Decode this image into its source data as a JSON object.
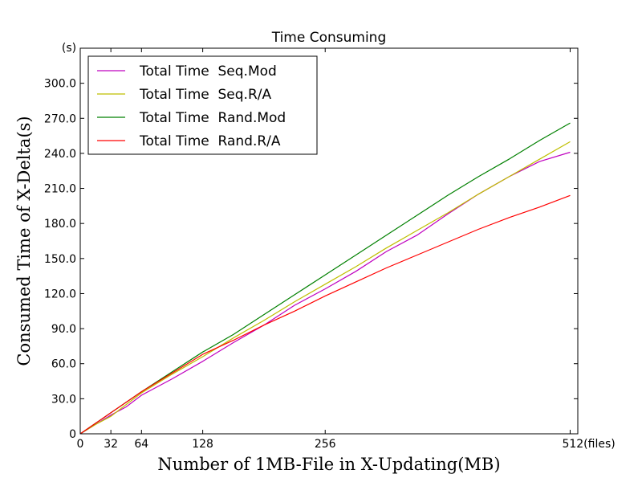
{
  "chart_data": {
    "type": "line",
    "title": "Time Consuming",
    "xlabel": "Number of 1MB-File in X-Updating(MB)",
    "ylabel": "Consumed Time of X-Delta(s)",
    "y_unit_label": "(s)",
    "xlim": [
      0,
      520
    ],
    "ylim": [
      0,
      330
    ],
    "x_ticks": [
      {
        "value": 0,
        "label": "0"
      },
      {
        "value": 32,
        "label": "32"
      },
      {
        "value": 64,
        "label": "64"
      },
      {
        "value": 128,
        "label": "128"
      },
      {
        "value": 256,
        "label": "256"
      },
      {
        "value": 512,
        "label": "512(files)"
      }
    ],
    "y_ticks": [
      {
        "value": 0,
        "label": "0"
      },
      {
        "value": 30,
        "label": "30.0"
      },
      {
        "value": 60,
        "label": "60.0"
      },
      {
        "value": 90,
        "label": "90.0"
      },
      {
        "value": 120,
        "label": "120.0"
      },
      {
        "value": 150,
        "label": "150.0"
      },
      {
        "value": 180,
        "label": "180.0"
      },
      {
        "value": 210,
        "label": "210.0"
      },
      {
        "value": 240,
        "label": "240.0"
      },
      {
        "value": 270,
        "label": "270.0"
      },
      {
        "value": 300,
        "label": "300.0"
      }
    ],
    "grid": false,
    "legend_position": "top-left",
    "series": [
      {
        "name": "Total Time  Seq.Mod",
        "color": "#bf00bf",
        "points": [
          [
            0,
            0
          ],
          [
            16,
            8
          ],
          [
            32,
            16
          ],
          [
            48,
            23
          ],
          [
            64,
            33
          ],
          [
            96,
            47
          ],
          [
            128,
            62
          ],
          [
            160,
            78
          ],
          [
            192,
            93
          ],
          [
            224,
            110
          ],
          [
            256,
            124
          ],
          [
            288,
            139
          ],
          [
            320,
            156
          ],
          [
            352,
            170
          ],
          [
            384,
            188
          ],
          [
            416,
            205
          ],
          [
            448,
            220
          ],
          [
            480,
            233
          ],
          [
            512,
            241
          ]
        ]
      },
      {
        "name": "Total Time  Seq.R/A",
        "color": "#bfbf00",
        "points": [
          [
            0,
            0
          ],
          [
            16,
            8
          ],
          [
            32,
            15
          ],
          [
            48,
            25
          ],
          [
            64,
            35
          ],
          [
            96,
            51
          ],
          [
            128,
            66
          ],
          [
            160,
            82
          ],
          [
            192,
            97
          ],
          [
            224,
            113
          ],
          [
            256,
            128
          ],
          [
            288,
            143
          ],
          [
            320,
            159
          ],
          [
            352,
            174
          ],
          [
            384,
            189
          ],
          [
            416,
            205
          ],
          [
            448,
            220
          ],
          [
            480,
            235
          ],
          [
            512,
            250
          ]
        ]
      },
      {
        "name": "Total Time  Rand.Mod",
        "color": "#008000",
        "points": [
          [
            0,
            0
          ],
          [
            16,
            9
          ],
          [
            32,
            18
          ],
          [
            48,
            27
          ],
          [
            64,
            36
          ],
          [
            96,
            53
          ],
          [
            128,
            70
          ],
          [
            160,
            85
          ],
          [
            192,
            102
          ],
          [
            224,
            119
          ],
          [
            256,
            136
          ],
          [
            288,
            153
          ],
          [
            320,
            170
          ],
          [
            352,
            187
          ],
          [
            384,
            204
          ],
          [
            416,
            220
          ],
          [
            448,
            235
          ],
          [
            480,
            251
          ],
          [
            512,
            266
          ]
        ]
      },
      {
        "name": "Total Time  Rand.R/A",
        "color": "#ff0000",
        "points": [
          [
            0,
            0
          ],
          [
            16,
            9
          ],
          [
            32,
            18
          ],
          [
            48,
            27
          ],
          [
            64,
            36
          ],
          [
            96,
            52
          ],
          [
            128,
            68
          ],
          [
            160,
            80
          ],
          [
            192,
            93
          ],
          [
            224,
            105
          ],
          [
            256,
            118
          ],
          [
            288,
            130
          ],
          [
            320,
            142
          ],
          [
            352,
            153
          ],
          [
            384,
            164
          ],
          [
            416,
            175
          ],
          [
            448,
            185
          ],
          [
            480,
            194
          ],
          [
            512,
            204
          ]
        ]
      }
    ]
  }
}
